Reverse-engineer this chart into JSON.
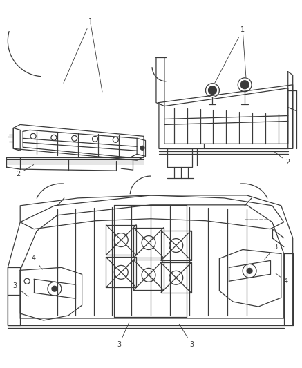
{
  "background_color": "#ffffff",
  "figure_width": 4.37,
  "figure_height": 5.33,
  "dpi": 100,
  "line_color": "#3a3a3a",
  "label_fontsize": 7,
  "line_width": 0.9
}
